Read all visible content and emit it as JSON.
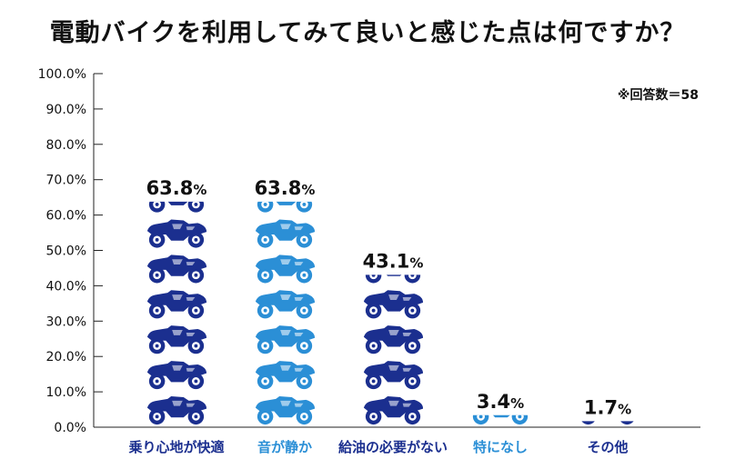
{
  "chart_data": {
    "type": "bar",
    "title": "電動バイクを利用してみて良いと感じた点は何ですか？",
    "note": "※回答数＝58",
    "categories": [
      "乗り心地が快適",
      "音が静か",
      "給油の必要がない",
      "特になし",
      "その他"
    ],
    "values": [
      63.8,
      63.8,
      43.1,
      3.4,
      1.7
    ],
    "value_labels": [
      "63.8",
      "63.8",
      "43.1",
      "3.4",
      "1.7"
    ],
    "unit": "%",
    "y_ticks": [
      "0.0%",
      "10.0%",
      "20.0%",
      "30.0%",
      "40.0%",
      "50.0%",
      "60.0%",
      "70.0%",
      "80.0%",
      "90.0%",
      "100.0%"
    ],
    "ylim": [
      0,
      100
    ],
    "colors": [
      "#1b2f8f",
      "#2b8fd6",
      "#1b2f8f",
      "#2b8fd6",
      "#1b2f8f"
    ],
    "label_colors": [
      "#1b2f8f",
      "#2b8fd6",
      "#1b2f8f",
      "#2b8fd6",
      "#1b2f8f"
    ]
  }
}
